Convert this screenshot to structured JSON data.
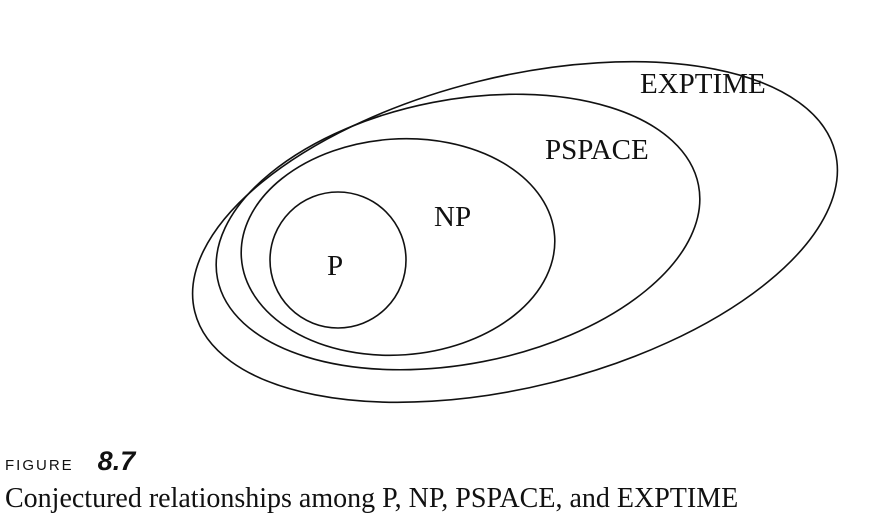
{
  "diagram": {
    "sets": [
      {
        "id": "exptime",
        "label": "EXPTIME"
      },
      {
        "id": "pspace",
        "label": "PSPACE"
      },
      {
        "id": "np",
        "label": "NP"
      },
      {
        "id": "p",
        "label": "P"
      }
    ],
    "relation": "nested",
    "stroke_color": "#111111"
  },
  "caption": {
    "figure_word": "FIGURE",
    "figure_number": "8.7",
    "text": "Conjectured relationships among P, NP, PSPACE, and EXPTIME"
  }
}
